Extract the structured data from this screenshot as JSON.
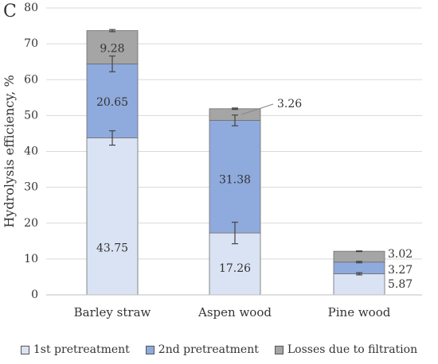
{
  "panel_label": "C",
  "chart_data": {
    "type": "bar",
    "stacked": true,
    "ylabel": "Hydrolysis efficiency, %",
    "ylim": [
      0,
      80
    ],
    "yticks": [
      "0",
      "10",
      "20",
      "30",
      "40",
      "50",
      "60",
      "70",
      "80"
    ],
    "grid": true,
    "legend_position": "bottom",
    "categories": [
      "Barley straw",
      "Aspen wood",
      "Pine wood"
    ],
    "series": [
      {
        "name": "1st pretreatment",
        "color": "#dae3f3",
        "values": [
          43.75,
          17.26,
          5.87
        ],
        "labels": [
          "43.75",
          "17.26",
          "5.87"
        ],
        "errors": [
          2.0,
          3.0,
          0.3
        ]
      },
      {
        "name": "2nd pretreatment",
        "color": "#8faadc",
        "values": [
          20.65,
          31.38,
          3.27
        ],
        "labels": [
          "20.65",
          "31.38",
          "3.27"
        ],
        "errors": [
          2.2,
          1.5,
          0.2
        ]
      },
      {
        "name": "Losses due to filtration",
        "color": "#a5a5a5",
        "values": [
          9.28,
          3.26,
          3.02
        ],
        "labels": [
          "9.28",
          "3.26",
          "3.02"
        ],
        "errors": [
          0.3,
          0.2,
          0.1
        ]
      }
    ]
  }
}
